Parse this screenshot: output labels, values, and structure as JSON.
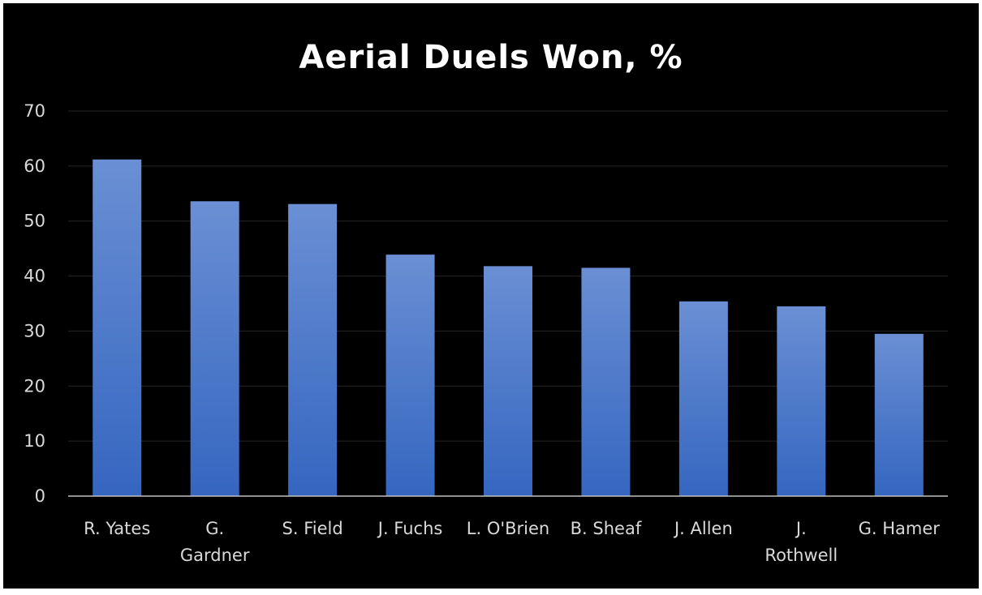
{
  "chart_data": {
    "type": "bar",
    "title": "Aerial Duels Won, %",
    "xlabel": "",
    "ylabel": "",
    "ylim": [
      0,
      70
    ],
    "yticks": [
      0,
      10,
      20,
      30,
      40,
      50,
      60,
      70
    ],
    "grid": true,
    "legend": "none",
    "categories": [
      [
        "R. Yates"
      ],
      [
        "G.",
        "Gardner"
      ],
      [
        "S. Field"
      ],
      [
        "J. Fuchs"
      ],
      [
        "L. O'Brien"
      ],
      [
        "B. Sheaf"
      ],
      [
        "J. Allen"
      ],
      [
        "J.",
        "Rothwell"
      ],
      [
        "G. Hamer"
      ]
    ],
    "values": [
      61.2,
      53.6,
      53.1,
      43.9,
      41.8,
      41.5,
      35.4,
      34.5,
      29.5
    ],
    "colors": {
      "background": "#000000",
      "bar_top": "#6a8fd4",
      "bar_bottom": "#3566c0",
      "text": "#d9d9d9",
      "title": "#ffffff",
      "grid": "#262626",
      "axis": "#bfbfbf"
    }
  }
}
